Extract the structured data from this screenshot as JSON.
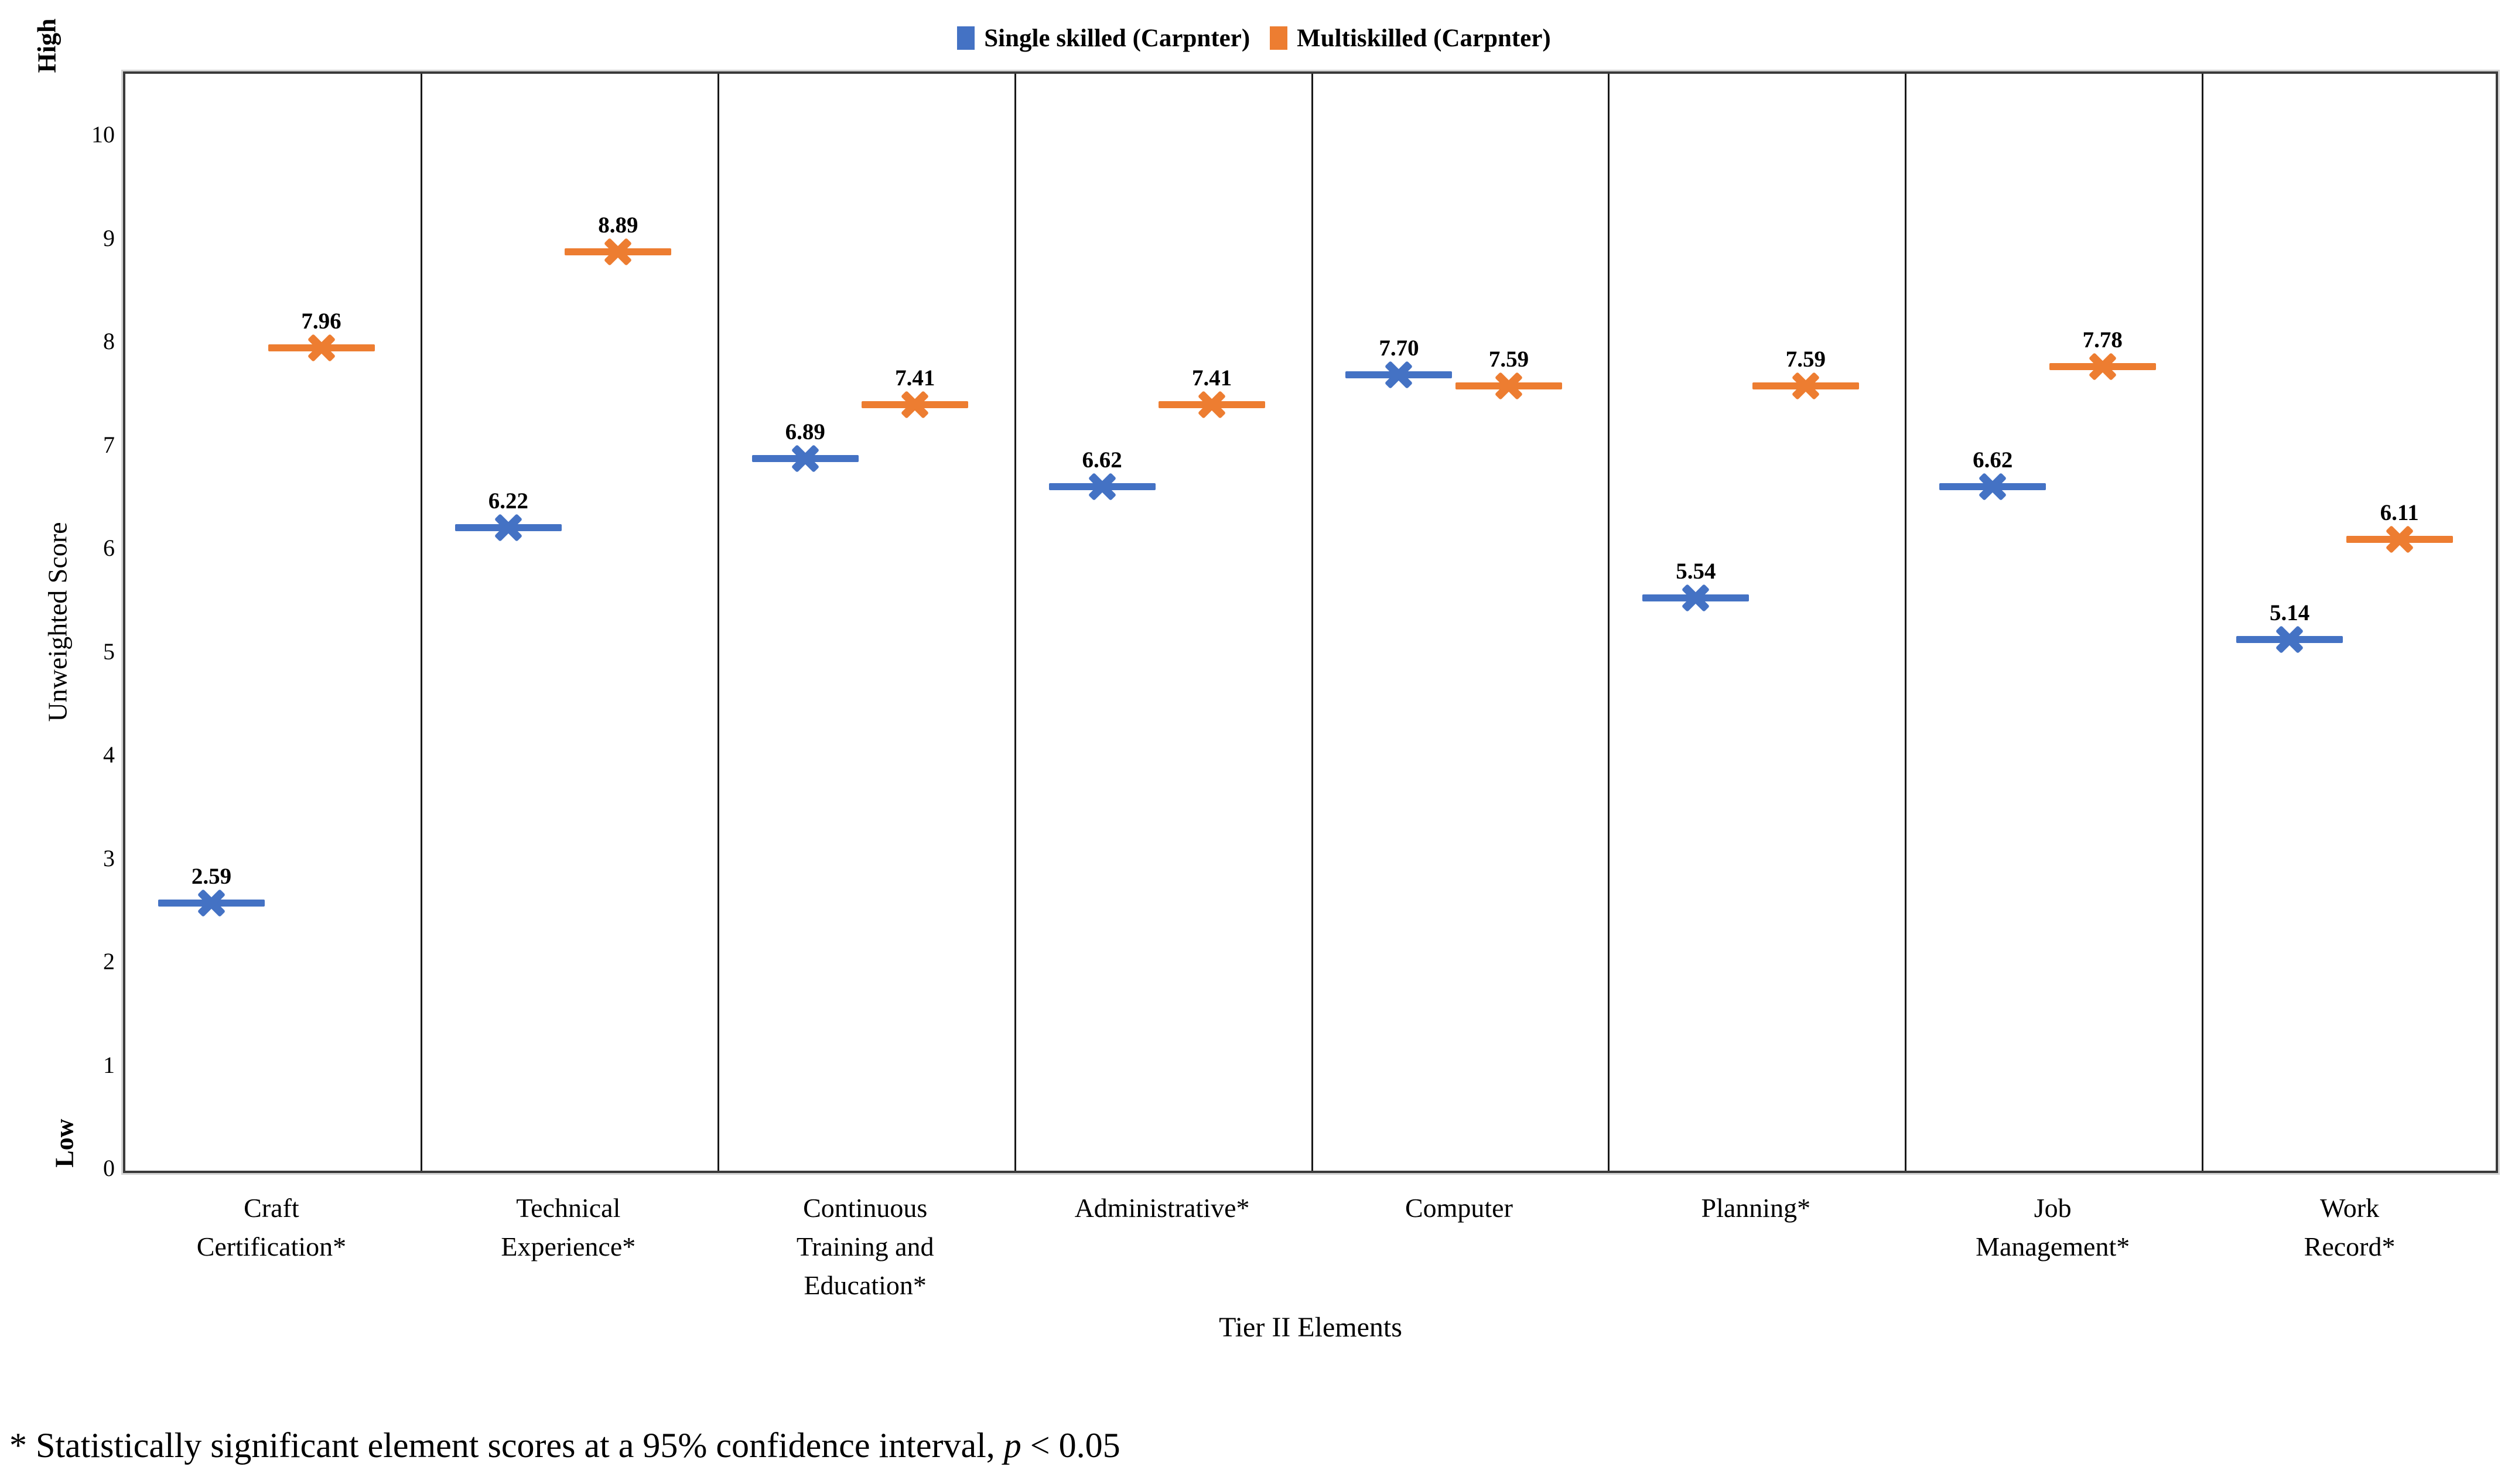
{
  "chart_data": {
    "type": "scatter",
    "marker_style": "horizontal-dash-with-x",
    "title": "",
    "categories": [
      "Craft\nCertification*",
      "Technical\nExperience*",
      "Continuous\nTraining and\nEducation*",
      "Administrative*",
      "Computer",
      "Planning*",
      "Job\nManagement*",
      "Work\nRecord*"
    ],
    "series": [
      {
        "name": "Single skilled (Carpnter)",
        "color": "#4472C4",
        "values": [
          2.59,
          6.22,
          6.89,
          6.62,
          7.7,
          5.54,
          6.62,
          5.14
        ],
        "labels": [
          "2.59",
          "6.22",
          "6.89",
          "6.62",
          "7.70",
          "5.54",
          "6.62",
          "5.14"
        ]
      },
      {
        "name": "Multiskilled (Carpnter)",
        "color": "#ED7D31",
        "values": [
          7.96,
          8.89,
          7.41,
          7.41,
          7.59,
          7.59,
          7.78,
          6.11
        ],
        "labels": [
          "7.96",
          "8.89",
          "7.41",
          "7.41",
          "7.59",
          "7.59",
          "7.78",
          "6.11"
        ]
      }
    ],
    "xlabel": "Tier II Elements",
    "ylabel": "Unweighted Score",
    "ylim": [
      0,
      10
    ],
    "y_ticks": [
      0,
      1,
      2,
      3,
      4,
      5,
      6,
      7,
      8,
      9,
      10
    ],
    "axis_end_labels": {
      "high": "High",
      "low": "Low"
    },
    "legend_position": "top",
    "grid": "vertical-panel-dividers-only",
    "data_label_decimals": 2
  },
  "footnote": {
    "before": "* Statistically significant element scores at a 95% confidence interval, ",
    "italic_var": "p",
    "after": " < 0.05"
  }
}
